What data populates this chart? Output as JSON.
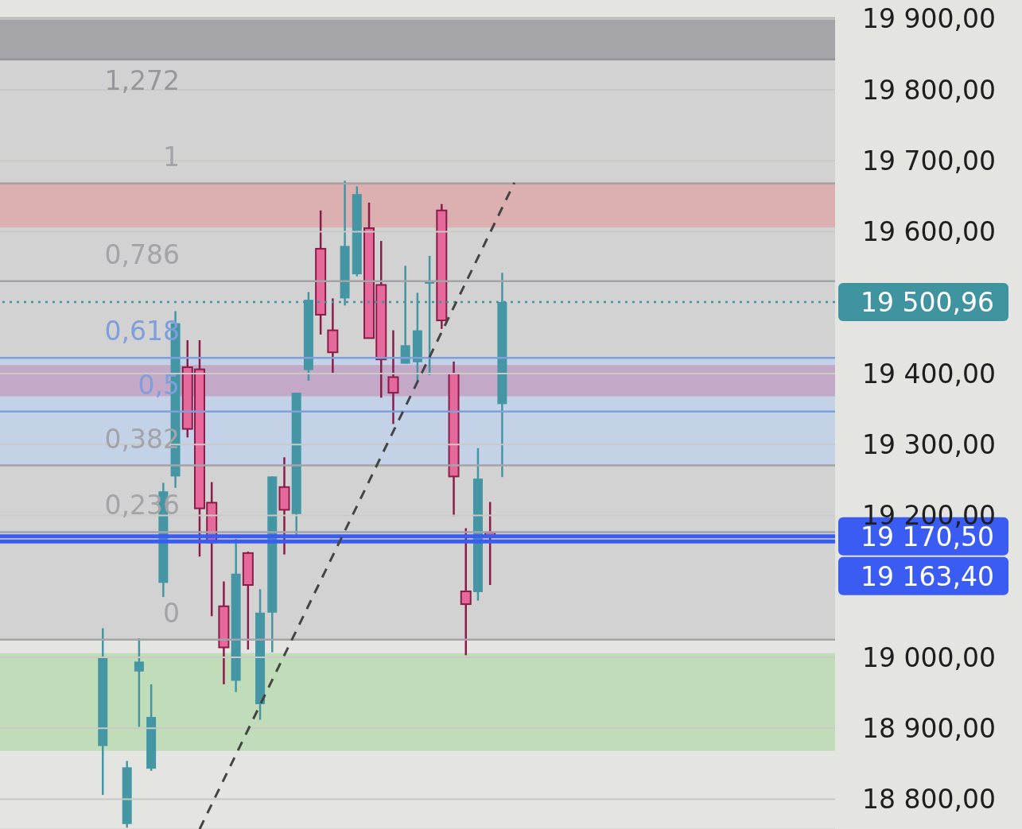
{
  "chart_data": {
    "type": "candlestick",
    "categories": [
      null,
      null,
      null,
      null,
      null,
      null,
      null,
      null,
      null,
      null,
      null,
      null,
      null,
      null,
      null,
      null,
      null,
      null,
      null,
      null,
      null,
      null,
      null,
      null,
      null,
      null,
      null,
      null,
      null,
      null,
      null,
      null,
      null,
      null,
      null,
      null,
      null,
      null,
      null,
      null,
      null,
      null,
      null,
      null,
      null,
      null,
      null,
      null,
      null,
      null,
      null,
      null,
      null,
      null,
      null,
      null,
      null,
      null,
      null,
      null,
      null,
      null,
      null,
      null,
      null,
      null,
      null,
      null,
      null
    ],
    "ohlc": [
      null,
      null,
      null,
      null,
      null,
      null,
      null,
      null,
      [
        18875,
        19041,
        18806,
        19000
      ],
      null,
      [
        18765,
        18854,
        18760,
        18845
      ],
      [
        18980,
        19027,
        18902,
        18994
      ],
      [
        18843,
        18962,
        18840,
        18916
      ],
      [
        19105,
        19246,
        19085,
        19234
      ],
      [
        19255,
        19488,
        19239,
        19471
      ],
      [
        19409,
        19447,
        19310,
        19322
      ],
      [
        19406,
        19447,
        19142,
        19210
      ],
      [
        19218,
        19247,
        19058,
        19162
      ],
      [
        19072,
        19107,
        18962,
        19014
      ],
      [
        18967,
        19167,
        18951,
        19118
      ],
      [
        19147,
        19149,
        19011,
        19102
      ],
      [
        18934,
        19096,
        18912,
        19063
      ],
      [
        19063,
        19255,
        19007,
        19255
      ],
      [
        19240,
        19282,
        19145,
        19208
      ],
      [
        19202,
        19373,
        19173,
        19373
      ],
      [
        19405,
        19515,
        19390,
        19504
      ],
      [
        19576,
        19630,
        19455,
        19483
      ],
      [
        19461,
        19506,
        19400,
        19430
      ],
      [
        19506,
        19672,
        19496,
        19580
      ],
      [
        19540,
        19664,
        19537,
        19653
      ],
      [
        19605,
        19641,
        19450,
        19450
      ],
      [
        19525,
        19587,
        19366,
        19420
      ],
      [
        19395,
        19461,
        19329,
        19373
      ],
      [
        19414,
        19552,
        19414,
        19440
      ],
      [
        19416,
        19514,
        19390,
        19461
      ],
      [
        19529,
        19566,
        19398,
        19529
      ],
      [
        19630,
        19639,
        19463,
        19475
      ],
      [
        19400,
        19417,
        19199,
        19255
      ],
      [
        19093,
        19182,
        19003,
        19075
      ],
      [
        19092,
        19295,
        19080,
        19252
      ],
      [
        19176,
        19219,
        19102,
        19170.5
      ],
      [
        19357,
        19542,
        19254,
        19500.96
      ],
      null,
      null,
      null,
      null,
      null,
      null,
      null,
      null,
      null,
      null,
      null,
      null,
      null,
      null,
      null,
      null,
      null,
      null,
      null,
      null,
      null,
      null,
      null,
      null,
      null,
      null,
      null
    ],
    "colors": [
      null,
      null,
      null,
      null,
      null,
      null,
      null,
      null,
      "#4596a4",
      null,
      "#4596a4",
      "#4596a4",
      "#4596a4",
      "#4596a4",
      "#4596a4",
      "#e5699a",
      "#e5699a",
      "#e5699a",
      "#e5699a",
      "#4596a4",
      "#e5699a",
      "#4596a4",
      "#4596a4",
      "#e5699a",
      "#4596a4",
      "#4596a4",
      "#e5699a",
      "#e5699a",
      "#4596a4",
      "#4596a4",
      "#e5699a",
      "#e5699a",
      "#e5699a",
      "#4596a4",
      "#4596a4",
      "#4596a4",
      "#e5699a",
      "#e5699a",
      "#e5699a",
      "#4596a4",
      "#e5699a",
      "#4596a4",
      null,
      null,
      null,
      null,
      null,
      null,
      null,
      null,
      null,
      null,
      null,
      null,
      null,
      null,
      null,
      null,
      null,
      null,
      null,
      null,
      null,
      null,
      null,
      null,
      null,
      null,
      null
    ],
    "series": [
      {
        "type": "line",
        "color": "#444444",
        "line_style": "dashed",
        "values": [
          null,
          null,
          null,
          null,
          null,
          null,
          null,
          null,
          null,
          null,
          null,
          null,
          null,
          null,
          null,
          null,
          18758,
          null,
          null,
          null,
          null,
          null,
          null,
          null,
          null,
          null,
          null,
          null,
          null,
          null,
          null,
          null,
          null,
          null,
          null,
          null,
          null,
          null,
          null,
          null,
          null,
          null,
          19669,
          null,
          null,
          null,
          null,
          null,
          null,
          null,
          null,
          null,
          null,
          null,
          null,
          null,
          null,
          null,
          null,
          null,
          null,
          null,
          null,
          null,
          null,
          null,
          null,
          null,
          null
        ]
      }
    ],
    "ylim": [
      18758,
      19902
    ],
    "yticks": [
      {
        "value": 18800,
        "label": "18 800,00"
      },
      {
        "value": 18900,
        "label": "18 900,00"
      },
      {
        "value": 19000,
        "label": "19 000,00"
      },
      {
        "value": 19200,
        "label": "19 200,00"
      },
      {
        "value": 19300,
        "label": "19 300,00"
      },
      {
        "value": 19400,
        "label": "19 400,00"
      },
      {
        "value": 19600,
        "label": "19 600,00"
      },
      {
        "value": 19700,
        "label": "19 700,00"
      },
      {
        "value": 19800,
        "label": "19 800,00"
      },
      {
        "value": 19900,
        "label": "19 900,00"
      }
    ],
    "y2lim": [
      -0.415,
      1.364
    ],
    "grid": "y",
    "tick_labels": "y",
    "bands": [
      {
        "axis": "y2",
        "from": 1.272,
        "to": 1.364,
        "color": "#a4a4a9"
      },
      {
        "axis": "y2",
        "from": 0,
        "to": 1.272,
        "color": "#d2d2d2"
      },
      {
        "axis": "y2",
        "from": 0.382,
        "to": 0.618,
        "color": "#c4d2e8"
      },
      {
        "axis": "y",
        "from": 19606,
        "to": 19670,
        "color": "#dcb0b0"
      },
      {
        "axis": "y",
        "from": 19368,
        "to": 19412,
        "color": "#c4a8c8"
      },
      {
        "axis": "y",
        "from": 18868,
        "to": 19006,
        "color": "#c0dcb8"
      }
    ],
    "ref_lines": [
      {
        "axis": "y2",
        "value": 1.272,
        "label": "1,272",
        "color": "#96969c"
      },
      {
        "axis": "y2",
        "value": 1,
        "label": "1",
        "color": "#a3a3a8"
      },
      {
        "axis": "y2",
        "value": 0.786,
        "label": "0,786",
        "color": "#a3a3a8"
      },
      {
        "axis": "y2",
        "value": 0.618,
        "label": "0,618",
        "color": "#7f9edc"
      },
      {
        "axis": "y2",
        "value": 0.5,
        "label": "0,5",
        "color": "#7f9edc"
      },
      {
        "axis": "y2",
        "value": 0.382,
        "label": "0,382",
        "color": "#a3a3a8"
      },
      {
        "axis": "y2",
        "value": 0.236,
        "label": "0,236",
        "color": "#a3a3a8"
      },
      {
        "axis": "y2",
        "value": 0,
        "label": "0",
        "color": "#a3a3a8"
      },
      {
        "axis": "y",
        "value": 19500.96,
        "label": "19 500,96",
        "color": "#3f94a0",
        "line_style": "dotted"
      },
      {
        "axis": "y",
        "value": 19170.5,
        "label": "19 170,50",
        "color": "#3a5cf2",
        "line_style": "solid"
      },
      {
        "axis": "y",
        "value": 19163.4,
        "label": "19 163,40",
        "color": "#3a5cf2",
        "line_style": "solid"
      }
    ]
  }
}
